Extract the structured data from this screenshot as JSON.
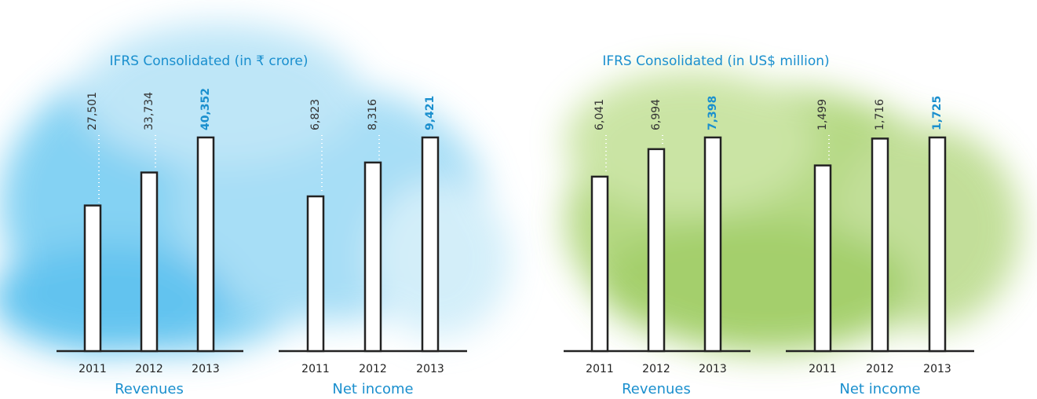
{
  "chart_data": [
    {
      "type": "bar",
      "title": "IFRS Consolidated (in ₹ crore)",
      "color": "#ffffff",
      "highlight_color": "#1a8fce",
      "groups": [
        {
          "name": "Revenues",
          "categories": [
            "2011",
            "2012",
            "2013"
          ],
          "values": [
            27501,
            33734,
            40352
          ],
          "value_labels": [
            "27,501",
            "33,734",
            "40,352"
          ]
        },
        {
          "name": "Net income",
          "categories": [
            "2011",
            "2012",
            "2013"
          ],
          "values": [
            6823,
            8316,
            9421
          ],
          "value_labels": [
            "6,823",
            "8,316",
            "9,421"
          ]
        }
      ]
    },
    {
      "type": "bar",
      "title": "IFRS Consolidated (in US$ million)",
      "color": "#ffffff",
      "highlight_color": "#1a8fce",
      "groups": [
        {
          "name": "Revenues",
          "categories": [
            "2011",
            "2012",
            "2013"
          ],
          "values": [
            6041,
            6994,
            7398
          ],
          "value_labels": [
            "6,041",
            "6,994",
            "7,398"
          ]
        },
        {
          "name": "Net income",
          "categories": [
            "2011",
            "2012",
            "2013"
          ],
          "values": [
            1499,
            1716,
            1725
          ],
          "value_labels": [
            "1,499",
            "1,716",
            "1,725"
          ]
        }
      ]
    }
  ]
}
